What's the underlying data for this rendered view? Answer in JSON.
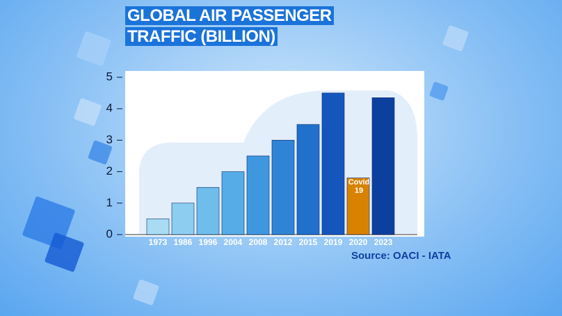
{
  "chart_data": {
    "type": "bar",
    "title": "GLOBAL AIR PASSENGER TRAFFIC (BILLION)",
    "categories": [
      "1973",
      "1986",
      "1996",
      "2004",
      "2008",
      "2012",
      "2015",
      "2019",
      "2020",
      "2023"
    ],
    "values": [
      0.5,
      1.0,
      1.5,
      2.0,
      2.5,
      3.0,
      3.5,
      4.5,
      1.8,
      4.35
    ],
    "colors": [
      "#a9dcf3",
      "#8ccdf0",
      "#6fbdeb",
      "#55ace6",
      "#3f98df",
      "#2f84d6",
      "#2171cc",
      "#1556bd",
      "#d98200",
      "#0d3f9f"
    ],
    "annotation": "Covid 19",
    "source": "Source: OACI - IATA",
    "ylim": [
      0,
      5
    ],
    "yticks": [
      0,
      1,
      2,
      3,
      4,
      5
    ],
    "grid": false
  }
}
